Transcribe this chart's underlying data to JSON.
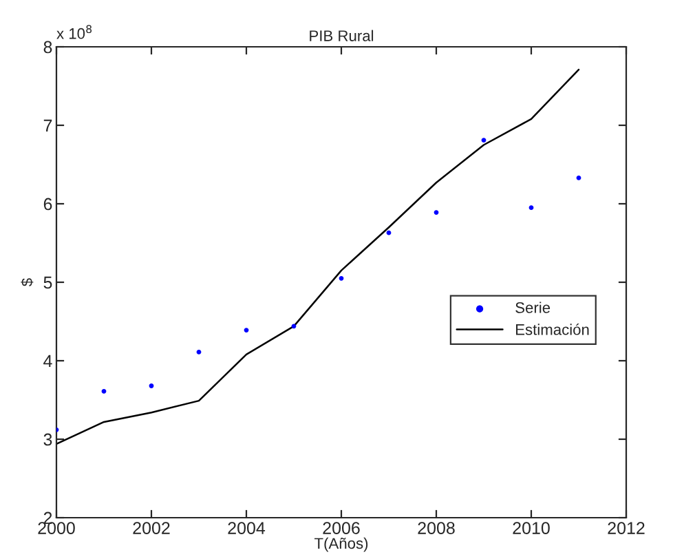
{
  "chart_data": {
    "type": "line",
    "title": "PIB Rural",
    "xlabel": "T(Años)",
    "ylabel": "$",
    "annotations": [
      "x 10$^{8}$"
    ],
    "x": [
      2000,
      2001,
      2002,
      2003,
      2004,
      2005,
      2006,
      2007,
      2008,
      2009,
      2010,
      2011
    ],
    "series": [
      {
        "name": "Serie",
        "type": "scatter",
        "color": "#0000ff",
        "marker": "circle",
        "values": [
          3.12,
          3.61,
          3.68,
          4.11,
          4.39,
          4.44,
          5.05,
          5.63,
          5.89,
          6.81,
          5.95,
          6.33
        ]
      },
      {
        "name": "Estimación",
        "color": "#000000",
        "line_style": "solid",
        "values": [
          2.94,
          3.22,
          3.34,
          3.49,
          4.08,
          4.44,
          5.15,
          5.7,
          6.27,
          6.75,
          7.08,
          7.71
        ]
      }
    ],
    "xlim": [
      2000,
      2012
    ],
    "xticks": [
      2000,
      2002,
      2004,
      2006,
      2008,
      2010,
      2012
    ],
    "ylim": [
      2,
      8
    ],
    "yticks": [
      2,
      3,
      4,
      5,
      6,
      7,
      8
    ],
    "grid": false,
    "legend": "right"
  }
}
